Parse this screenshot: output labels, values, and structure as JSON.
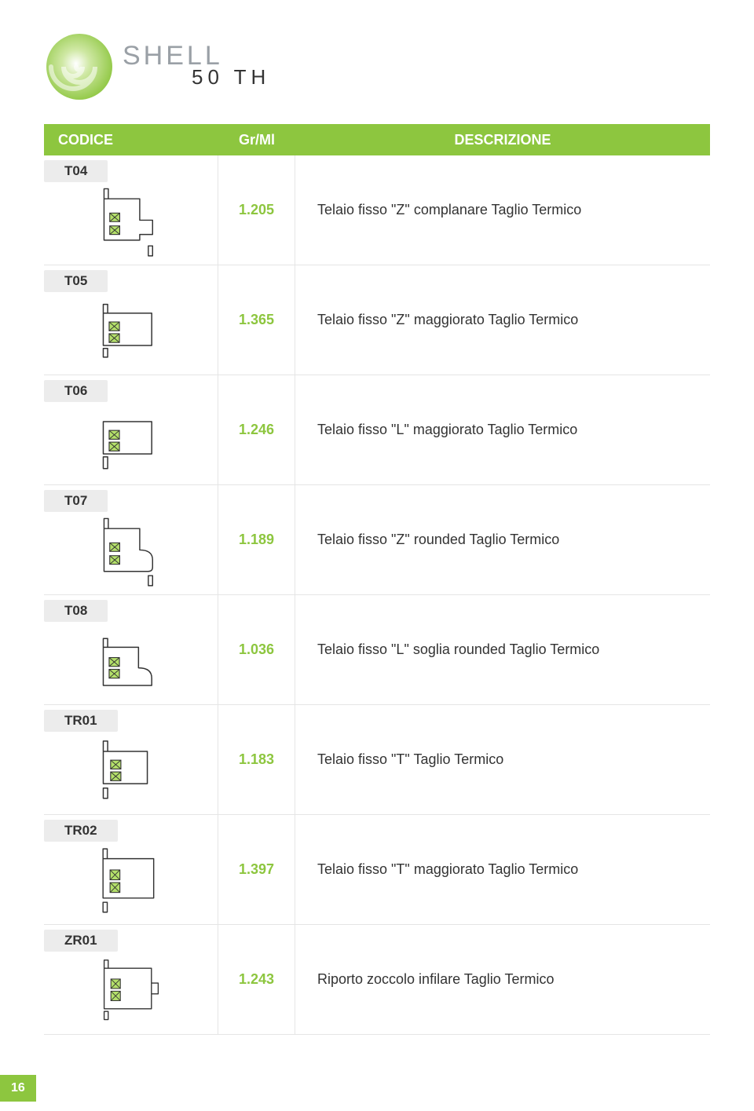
{
  "brand": {
    "title": "SHELL",
    "subtitle": "50 TH",
    "swirl_color": "#8dc63f",
    "title_color": "#9aa0a6",
    "subtitle_color": "#343434"
  },
  "headers": {
    "code": "CODICE",
    "gr": "Gr/Ml",
    "desc": "DESCRIZIONE"
  },
  "colors": {
    "accent": "#8dc63f",
    "badge_bg": "#ececec",
    "rule": "#e5e5e5",
    "text": "#333333",
    "value": "#8dc63f",
    "profile_stroke": "#333333",
    "profile_fill": "#b4e06a"
  },
  "rows": [
    {
      "code": "T04",
      "gr": "1.205",
      "desc": "Telaio fisso \"Z\" complanare Taglio Termico",
      "shape": "z1"
    },
    {
      "code": "T05",
      "gr": "1.365",
      "desc": "Telaio fisso \"Z\" maggiorato Taglio Termico",
      "shape": "z2"
    },
    {
      "code": "T06",
      "gr": "1.246",
      "desc": "Telaio fisso \"L\" maggiorato Taglio Termico",
      "shape": "l2"
    },
    {
      "code": "T07",
      "gr": "1.189",
      "desc": "Telaio fisso \"Z\" rounded Taglio Termico",
      "shape": "zr"
    },
    {
      "code": "T08",
      "gr": "1.036",
      "desc": "Telaio fisso \"L\" soglia rounded Taglio Termico",
      "shape": "lr"
    },
    {
      "code": "TR01",
      "gr": "1.183",
      "desc": "Telaio fisso \"T\" Taglio Termico",
      "shape": "t1"
    },
    {
      "code": "TR02",
      "gr": "1.397",
      "desc": "Telaio fisso \"T\" maggiorato Taglio Termico",
      "shape": "t2"
    },
    {
      "code": "ZR01",
      "gr": "1.243",
      "desc": "Riporto zoccolo infilare Taglio Termico",
      "shape": "zo"
    }
  ],
  "page_number": "16"
}
